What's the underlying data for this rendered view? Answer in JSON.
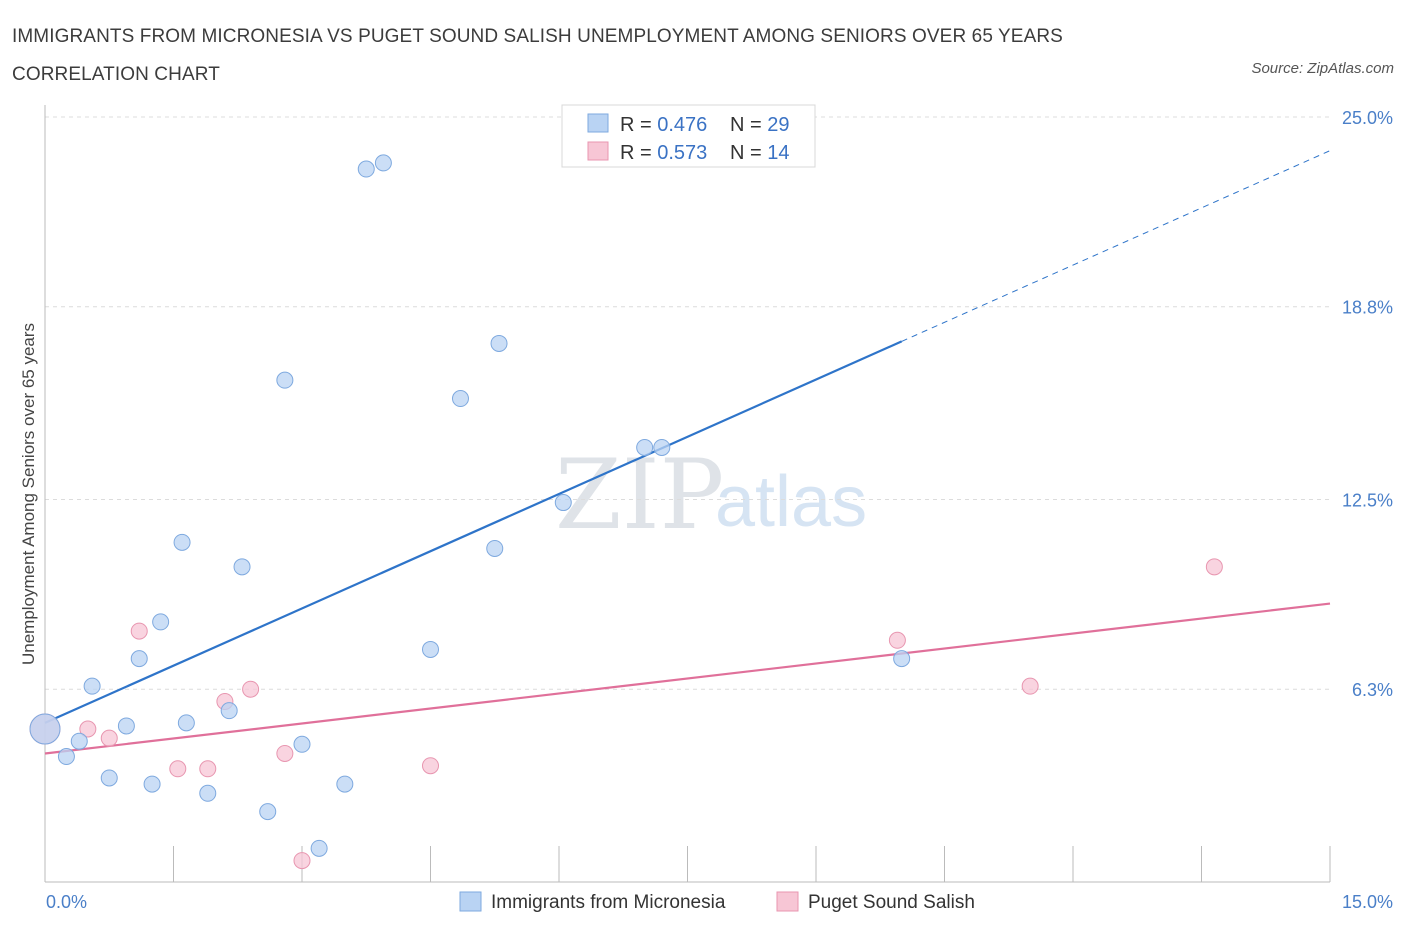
{
  "header": {
    "title": "IMMIGRANTS FROM MICRONESIA VS PUGET SOUND SALISH UNEMPLOYMENT AMONG SENIORS OVER 65 YEARS CORRELATION CHART",
    "source": "Source: ZipAtlas.com"
  },
  "colors": {
    "blue_fill": "#b9d3f3",
    "blue_stroke": "#7ea9df",
    "blue_line": "#2e74c9",
    "pink_fill": "#f7c6d5",
    "pink_stroke": "#e896b0",
    "pink_line": "#e0709a",
    "grid": "#dcdcdc",
    "tick_label": "#4a7fc8"
  },
  "watermark": {
    "zip": "ZIP",
    "atlas": "atlas"
  },
  "legend": {
    "rows": [
      {
        "series": "Immigrants from Micronesia",
        "r_label": "R = ",
        "r_value": "0.476",
        "n_label": "N = ",
        "n_value": "29"
      },
      {
        "series": "Puget Sound Salish",
        "r_label": "R = ",
        "r_value": "0.573",
        "n_label": "N = ",
        "n_value": "14"
      }
    ]
  },
  "chart_data": {
    "type": "scatter",
    "title": "IMMIGRANTS FROM MICRONESIA VS PUGET SOUND SALISH UNEMPLOYMENT AMONG SENIORS OVER 65 YEARS CORRELATION CHART",
    "xlabel": "",
    "ylabel": "Unemployment Among Seniors over 65 years",
    "xlim": [
      0,
      15
    ],
    "ylim": [
      0,
      25
    ],
    "x_tick_labels": [
      {
        "value": 0,
        "label": "0.0%"
      },
      {
        "value": 15,
        "label": "15.0%"
      }
    ],
    "y_tick_labels": [
      {
        "value": 6.3,
        "label": "6.3%"
      },
      {
        "value": 12.5,
        "label": "12.5%"
      },
      {
        "value": 18.8,
        "label": "18.8%"
      },
      {
        "value": 25.0,
        "label": "25.0%"
      }
    ],
    "y_gridlines": [
      6.3,
      12.5,
      18.8,
      25.0
    ],
    "x_minor_ticks": [
      1.5,
      3.0,
      4.5,
      6.0,
      7.5,
      9.0,
      10.5,
      12.0,
      13.5,
      15.0
    ],
    "series": [
      {
        "name": "Immigrants from Micronesia",
        "color": "blue",
        "points": [
          [
            0.0,
            5.0
          ],
          [
            0.25,
            4.1
          ],
          [
            0.4,
            4.6
          ],
          [
            0.55,
            6.4
          ],
          [
            0.75,
            3.4
          ],
          [
            0.95,
            5.1
          ],
          [
            1.1,
            7.3
          ],
          [
            1.25,
            3.2
          ],
          [
            1.35,
            8.5
          ],
          [
            1.6,
            11.1
          ],
          [
            1.65,
            5.2
          ],
          [
            1.9,
            2.9
          ],
          [
            2.15,
            5.6
          ],
          [
            2.3,
            10.3
          ],
          [
            2.6,
            2.3
          ],
          [
            2.8,
            16.4
          ],
          [
            3.0,
            4.5
          ],
          [
            3.2,
            1.1
          ],
          [
            3.5,
            3.2
          ],
          [
            3.75,
            23.3
          ],
          [
            3.95,
            23.5
          ],
          [
            4.5,
            7.6
          ],
          [
            4.85,
            15.8
          ],
          [
            5.25,
            10.9
          ],
          [
            5.3,
            17.6
          ],
          [
            6.05,
            12.4
          ],
          [
            7.0,
            14.2
          ],
          [
            7.2,
            14.2
          ],
          [
            10.0,
            7.3
          ]
        ],
        "trend": {
          "x0": 0.0,
          "y0": 5.2,
          "x1": 15.0,
          "y1": 23.9,
          "solid_until_x": 10.0
        }
      },
      {
        "name": "Puget Sound Salish",
        "color": "pink",
        "points": [
          [
            0.0,
            5.0
          ],
          [
            0.5,
            5.0
          ],
          [
            0.75,
            4.7
          ],
          [
            1.1,
            8.2
          ],
          [
            1.55,
            3.7
          ],
          [
            1.9,
            3.7
          ],
          [
            2.1,
            5.9
          ],
          [
            2.4,
            6.3
          ],
          [
            2.8,
            4.2
          ],
          [
            3.0,
            0.7
          ],
          [
            4.5,
            3.8
          ],
          [
            9.95,
            7.9
          ],
          [
            11.5,
            6.4
          ],
          [
            13.65,
            10.3
          ]
        ],
        "trend": {
          "x0": 0.0,
          "y0": 4.2,
          "x1": 15.0,
          "y1": 9.1,
          "solid_until_x": 15.0
        }
      }
    ]
  }
}
